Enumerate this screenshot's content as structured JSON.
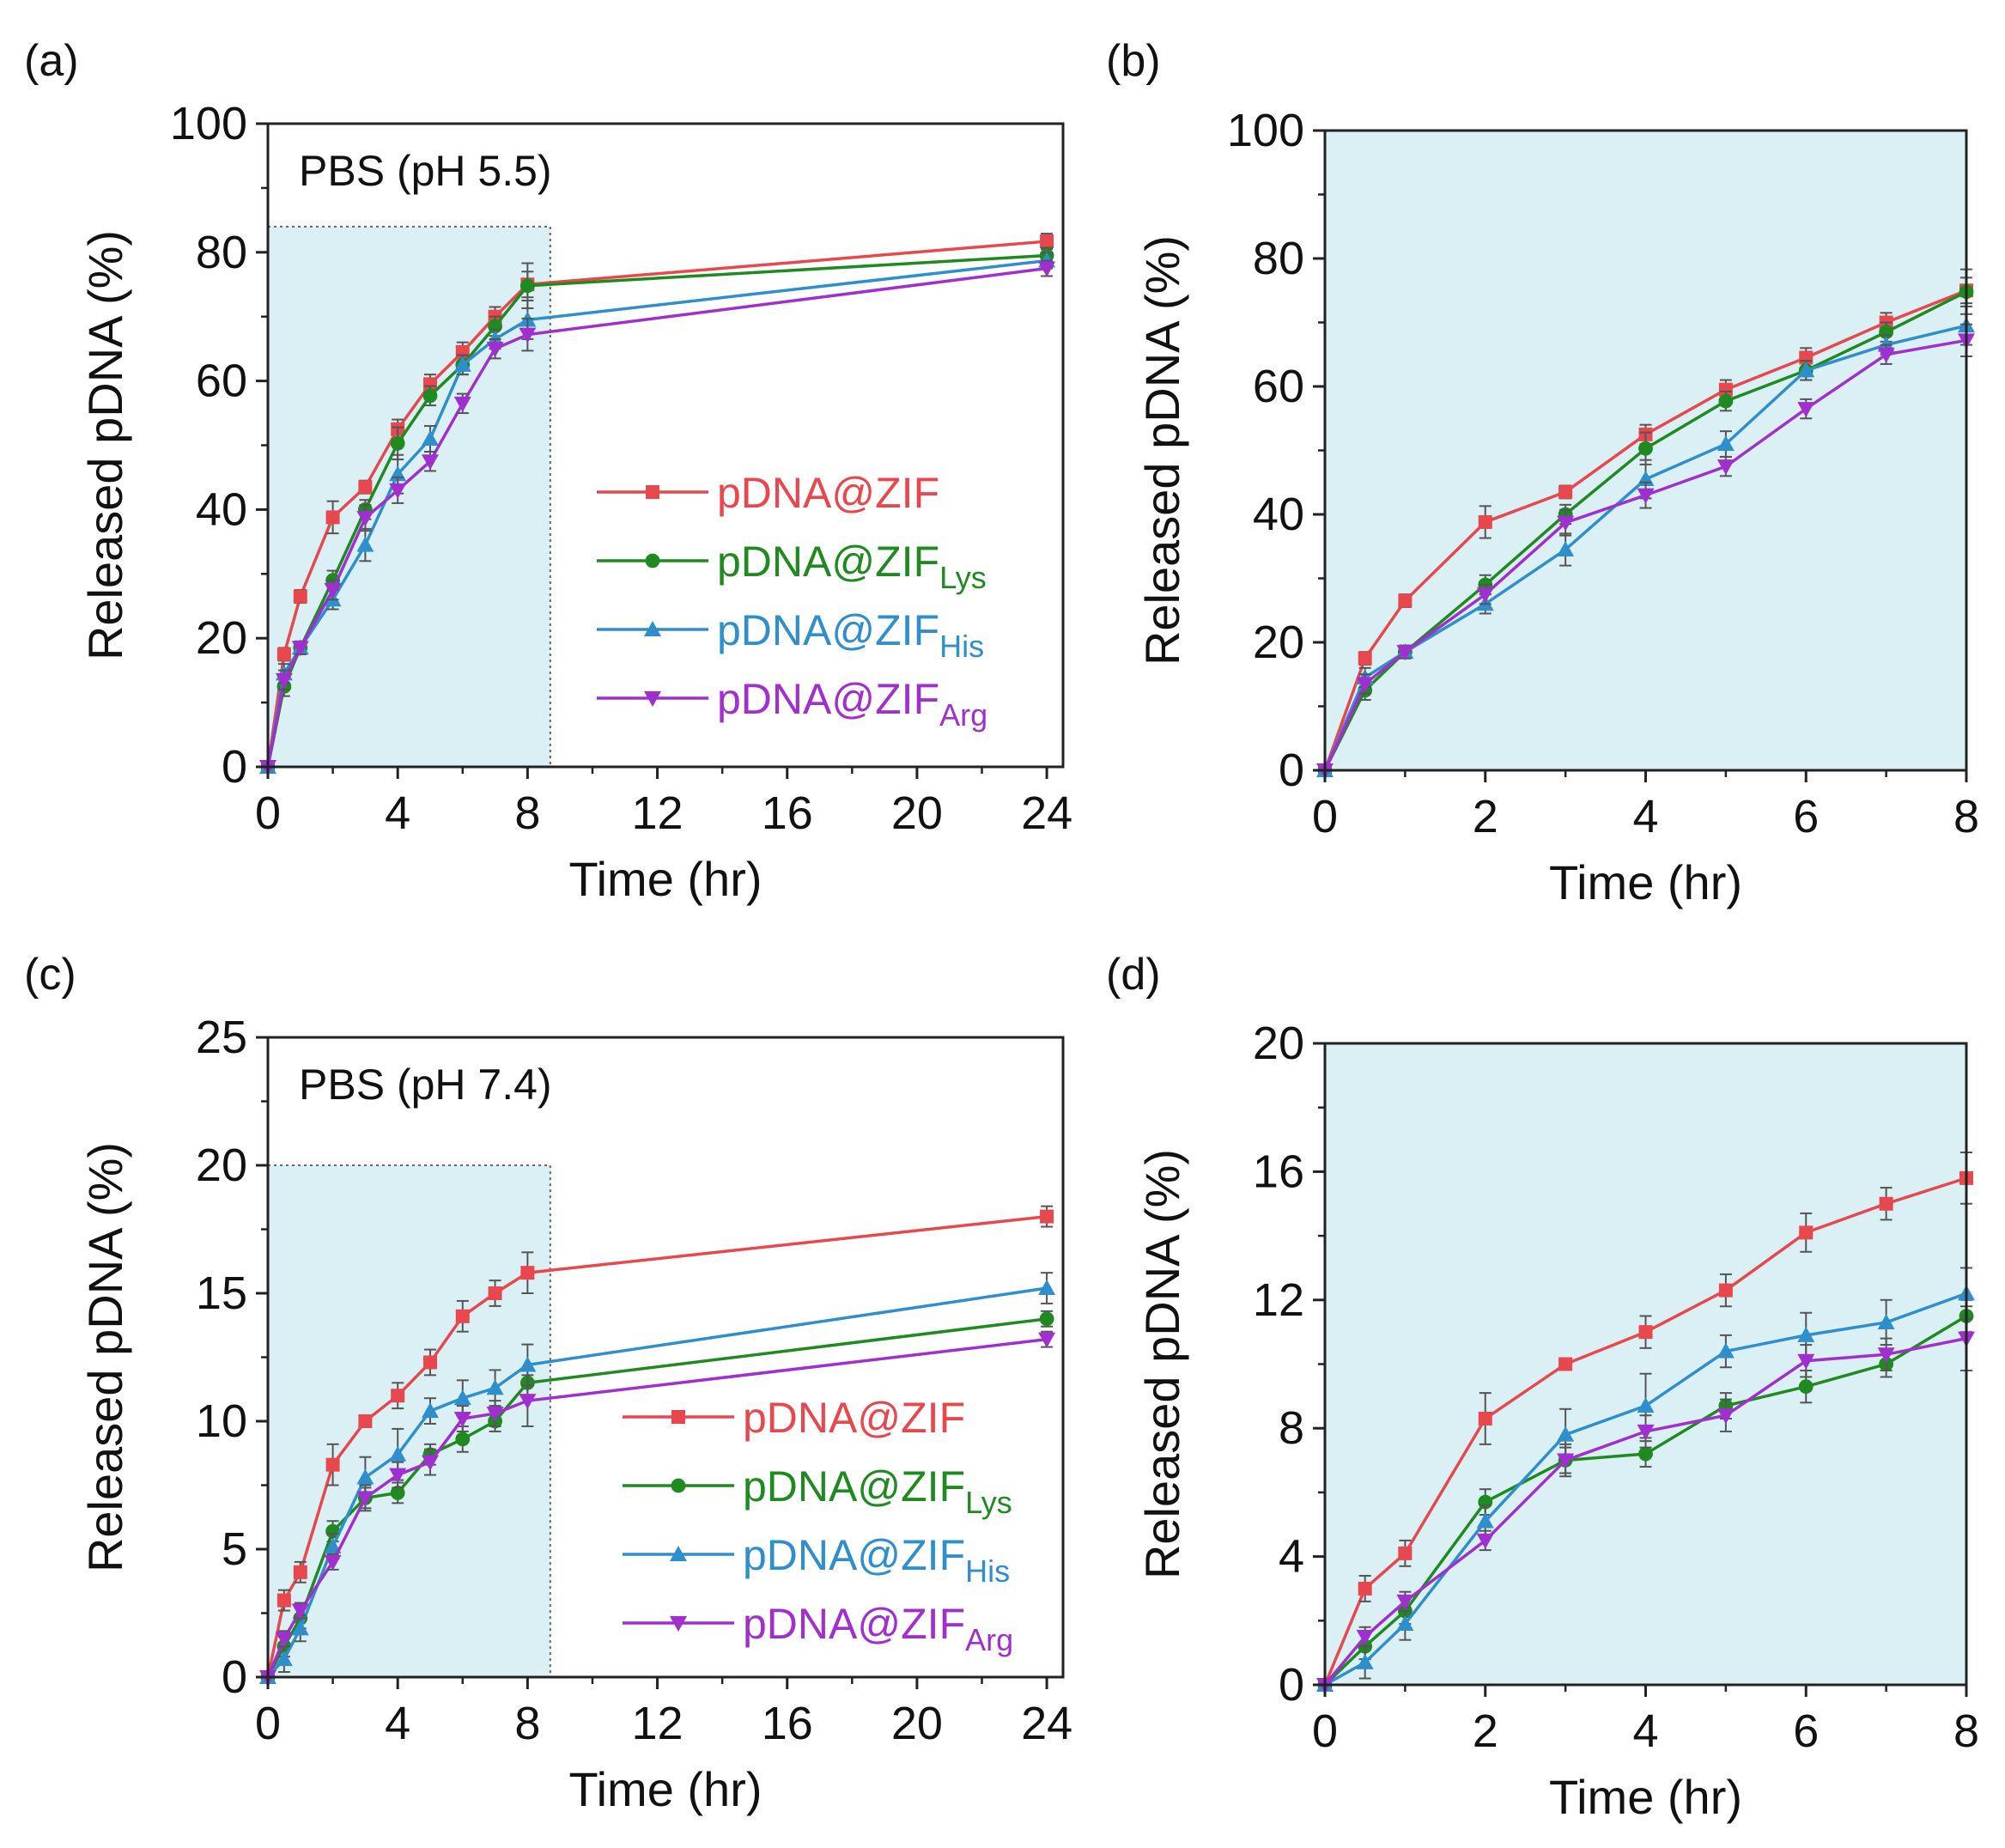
{
  "figure": {
    "xlabel": "Time (hr)",
    "ylabel": "Released pDNA (%)"
  },
  "series_meta": [
    {
      "name": "pDNA@ZIF",
      "base": "pDNA@ZIF",
      "sub": "",
      "color": "#e8474d",
      "marker": "square"
    },
    {
      "name": "pDNA@ZIFLys",
      "base": "pDNA@ZIF",
      "sub": "Lys",
      "color": "#1f8a1f",
      "marker": "circle"
    },
    {
      "name": "pDNA@ZIFHis",
      "base": "pDNA@ZIF",
      "sub": "His",
      "color": "#2e8fcc",
      "marker": "triangle-up"
    },
    {
      "name": "pDNA@ZIFArg",
      "base": "pDNA@ZIF",
      "sub": "Arg",
      "color": "#a12fd0",
      "marker": "triangle-down"
    }
  ],
  "colors": {
    "shade": "#daf0f4",
    "axis": "#222222",
    "errorbar": "#555555"
  },
  "chart_data": [
    {
      "panel": "(a)",
      "type": "line",
      "annotation": "PBS (pH 5.5)",
      "xlabel": "Time (hr)",
      "ylabel": "Released pDNA (%)",
      "xlim": [
        0,
        24.5
      ],
      "ylim": [
        0,
        100
      ],
      "xticks": [
        0,
        4,
        8,
        12,
        16,
        20,
        24
      ],
      "yticks": [
        0,
        20,
        40,
        60,
        80,
        100
      ],
      "shaded_region": {
        "x": [
          0,
          8.7
        ],
        "y": [
          0,
          84
        ]
      },
      "legend": "center-right",
      "x": [
        0,
        0.5,
        1,
        2,
        3,
        4,
        5,
        6,
        7,
        8,
        24
      ],
      "series": [
        {
          "name": "pDNA@ZIF",
          "values": [
            0,
            17.5,
            26.5,
            38.8,
            43.5,
            52.5,
            59.5,
            64.5,
            70,
            75,
            81.7
          ],
          "err": [
            0,
            1,
            1,
            2.5,
            1,
            1.5,
            1.5,
            1.5,
            1.5,
            2,
            1.2
          ]
        },
        {
          "name": "pDNA@ZIFLys",
          "values": [
            0,
            12.5,
            18.5,
            29,
            40,
            50.3,
            57.7,
            62.5,
            68.5,
            74.8,
            79.5
          ],
          "err": [
            0,
            1.5,
            1,
            1.5,
            1.5,
            2.5,
            1.5,
            1.5,
            1.5,
            3.5,
            1.2
          ]
        },
        {
          "name": "pDNA@ZIFHis",
          "values": [
            0,
            14.5,
            18.5,
            26,
            34.5,
            45.5,
            51,
            62.5,
            66.5,
            69.5,
            78.7
          ],
          "err": [
            0,
            1.5,
            1,
            1.5,
            2.5,
            3,
            2,
            1.5,
            1.5,
            3,
            1.2
          ]
        },
        {
          "name": "pDNA@ZIFArg",
          "values": [
            0,
            13.5,
            18.5,
            27.5,
            38.7,
            43,
            47.5,
            56.5,
            65,
            67.2,
            77.5
          ],
          "err": [
            0,
            1.5,
            1,
            1.5,
            2,
            2,
            1.5,
            1.5,
            1.5,
            2.5,
            1.2
          ]
        }
      ]
    },
    {
      "panel": "(b)",
      "type": "line",
      "annotation": "",
      "xlabel": "Time (hr)",
      "ylabel": "Released pDNA (%)",
      "xlim": [
        0,
        8
      ],
      "ylim": [
        0,
        100
      ],
      "xticks": [
        0,
        2,
        4,
        6,
        8
      ],
      "yticks": [
        0,
        20,
        40,
        60,
        80,
        100
      ],
      "shaded_full": true,
      "legend": "none",
      "x": [
        0,
        0.5,
        1,
        2,
        3,
        4,
        5,
        6,
        7,
        8
      ],
      "series": [
        {
          "name": "pDNA@ZIF",
          "values": [
            0,
            17.5,
            26.5,
            38.8,
            43.5,
            52.5,
            59.5,
            64.5,
            70,
            75
          ],
          "err": [
            0,
            1,
            1,
            2.5,
            1,
            1.5,
            1.5,
            1.5,
            1.5,
            2
          ]
        },
        {
          "name": "pDNA@ZIFLys",
          "values": [
            0,
            12.5,
            18.5,
            29,
            40,
            50.3,
            57.7,
            62.5,
            68.5,
            74.8
          ],
          "err": [
            0,
            1.5,
            1,
            1.5,
            1.5,
            2.5,
            1.5,
            1.5,
            1.5,
            3.5
          ]
        },
        {
          "name": "pDNA@ZIFHis",
          "values": [
            0,
            14.5,
            18.5,
            26,
            34.5,
            45.5,
            51,
            62.5,
            66.5,
            69.5
          ],
          "err": [
            0,
            1.5,
            1,
            1.5,
            2.5,
            3,
            2,
            1.5,
            1.5,
            3
          ]
        },
        {
          "name": "pDNA@ZIFArg",
          "values": [
            0,
            13.5,
            18.5,
            27.5,
            38.7,
            43,
            47.5,
            56.5,
            65,
            67.2
          ],
          "err": [
            0,
            1.5,
            1,
            1.5,
            2,
            2,
            1.5,
            1.5,
            1.5,
            2.5
          ]
        }
      ]
    },
    {
      "panel": "(c)",
      "type": "line",
      "annotation": "PBS (pH 7.4)",
      "xlabel": "Time (hr)",
      "ylabel": "Released pDNA (%)",
      "xlim": [
        0,
        24.5
      ],
      "ylim": [
        0,
        25
      ],
      "xticks": [
        0,
        4,
        8,
        12,
        16,
        20,
        24
      ],
      "yticks": [
        0,
        5,
        10,
        15,
        20,
        25
      ],
      "shaded_region": {
        "x": [
          0,
          8.7
        ],
        "y": [
          0,
          20
        ]
      },
      "legend": "center-right",
      "x": [
        0,
        0.5,
        1,
        2,
        3,
        4,
        5,
        6,
        7,
        8,
        24
      ],
      "series": [
        {
          "name": "pDNA@ZIF",
          "values": [
            0,
            3,
            4.1,
            8.3,
            10,
            11,
            12.3,
            14.1,
            15,
            15.8,
            18
          ],
          "err": [
            0,
            0.4,
            0.4,
            0.8,
            0.1,
            0.5,
            0.5,
            0.6,
            0.5,
            0.8,
            0.4
          ]
        },
        {
          "name": "pDNA@ZIFLys",
          "values": [
            0,
            1.2,
            2.3,
            5.7,
            7,
            7.2,
            8.7,
            9.3,
            10,
            11.5,
            14
          ],
          "err": [
            0,
            0.4,
            0.4,
            0.4,
            0.4,
            0.4,
            0.4,
            0.5,
            0.4,
            0.5,
            0.3
          ]
        },
        {
          "name": "pDNA@ZIFHis",
          "values": [
            0,
            0.7,
            1.9,
            5.1,
            7.8,
            8.7,
            10.4,
            10.9,
            11.3,
            12.2,
            15.2
          ],
          "err": [
            0,
            0.5,
            0.5,
            0.5,
            0.8,
            1,
            0.5,
            0.7,
            0.7,
            0.8,
            0.6
          ]
        },
        {
          "name": "pDNA@ZIFArg",
          "values": [
            0,
            1.5,
            2.6,
            4.5,
            7,
            7.9,
            8.4,
            10.1,
            10.3,
            10.8,
            13.2
          ],
          "err": [
            0,
            0.3,
            0.3,
            0.3,
            0.5,
            0.5,
            0.5,
            0.5,
            0.5,
            1,
            0.3
          ]
        }
      ]
    },
    {
      "panel": "(d)",
      "type": "line",
      "annotation": "",
      "xlabel": "Time (hr)",
      "ylabel": "Released pDNA (%)",
      "xlim": [
        0,
        8
      ],
      "ylim": [
        0,
        20
      ],
      "xticks": [
        0,
        2,
        4,
        6,
        8
      ],
      "yticks": [
        0,
        4,
        8,
        12,
        16,
        20
      ],
      "shaded_full": true,
      "legend": "none",
      "x": [
        0,
        0.5,
        1,
        2,
        3,
        4,
        5,
        6,
        7,
        8
      ],
      "series": [
        {
          "name": "pDNA@ZIF",
          "values": [
            0,
            3,
            4.1,
            8.3,
            10,
            11,
            12.3,
            14.1,
            15,
            15.8
          ],
          "err": [
            0,
            0.4,
            0.4,
            0.8,
            0.1,
            0.5,
            0.5,
            0.6,
            0.5,
            0.8
          ]
        },
        {
          "name": "pDNA@ZIFLys",
          "values": [
            0,
            1.2,
            2.3,
            5.7,
            7,
            7.2,
            8.7,
            9.3,
            10,
            11.5
          ],
          "err": [
            0,
            0.4,
            0.4,
            0.4,
            0.4,
            0.4,
            0.4,
            0.5,
            0.4,
            0.5
          ]
        },
        {
          "name": "pDNA@ZIFHis",
          "values": [
            0,
            0.7,
            1.9,
            5.1,
            7.8,
            8.7,
            10.4,
            10.9,
            11.3,
            12.2
          ],
          "err": [
            0,
            0.5,
            0.5,
            0.5,
            0.8,
            1,
            0.5,
            0.7,
            0.7,
            0.8
          ]
        },
        {
          "name": "pDNA@ZIFArg",
          "values": [
            0,
            1.5,
            2.6,
            4.5,
            7,
            7.9,
            8.4,
            10.1,
            10.3,
            10.8
          ],
          "err": [
            0,
            0.3,
            0.3,
            0.3,
            0.5,
            0.5,
            0.5,
            0.5,
            0.5,
            1
          ]
        }
      ]
    }
  ]
}
